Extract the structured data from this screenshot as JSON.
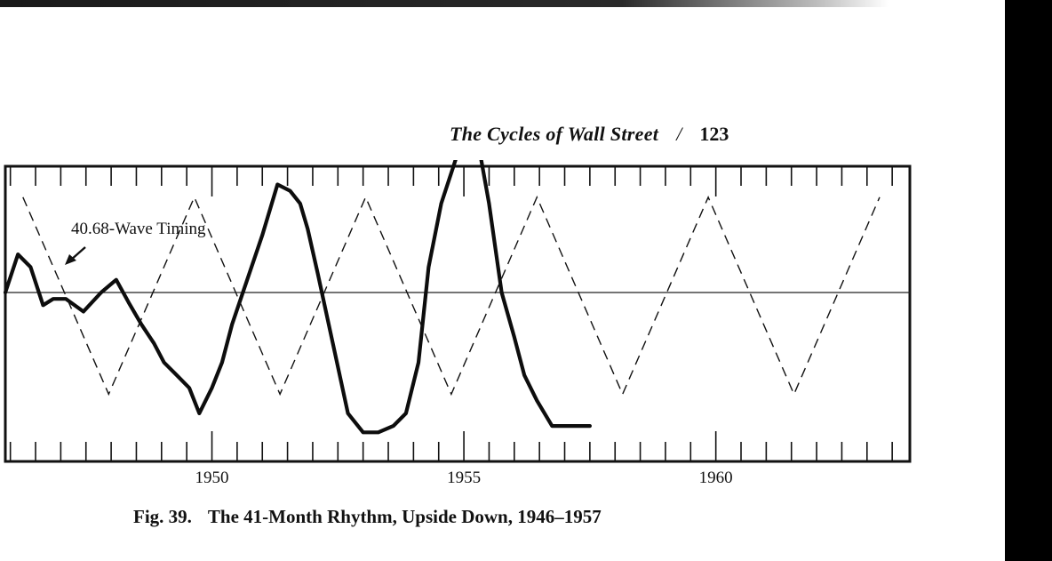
{
  "running_head": {
    "title": "The Cycles of Wall Street",
    "separator": "/",
    "page_number": "123"
  },
  "caption": {
    "label": "Fig. 39.",
    "text": "The 41-Month Rhythm, Upside Down, 1946–1957"
  },
  "chart_data": {
    "type": "line",
    "title": "",
    "xlabel": "",
    "ylabel": "",
    "x_range": [
      1945.9,
      1963.85
    ],
    "x_tick_labels": [
      {
        "x": 1950,
        "label": "1950"
      },
      {
        "x": 1955,
        "label": "1955"
      },
      {
        "x": 1960,
        "label": "1960"
      }
    ],
    "zero_line": true,
    "annotation": {
      "text": "40.68-Wave Timing",
      "arrow": true
    },
    "series": [
      {
        "name": "",
        "style": "solid-bold",
        "values_note": "",
        "x": [
          1945.9,
          1946.15,
          1946.4,
          1946.65,
          1946.85,
          1947.1,
          1947.45,
          1947.8,
          1948.1,
          1948.35,
          1948.6,
          1948.85,
          1949.05,
          1949.3,
          1949.55,
          1949.75,
          1950.0,
          1950.2,
          1950.4,
          1950.7,
          1951.0,
          1951.3,
          1951.55,
          1951.75,
          1951.9,
          1952.1,
          1952.4,
          1952.7,
          1953.0,
          1953.3,
          1953.6,
          1953.85,
          1954.1,
          1954.3,
          1954.55,
          1954.8,
          1955.0,
          1955.25,
          1955.5,
          1955.75,
          1956.0,
          1956.2,
          1956.45,
          1956.75,
          1957.1,
          1957.5
        ],
        "y": [
          0.0,
          0.3,
          0.2,
          -0.1,
          -0.05,
          -0.05,
          -0.15,
          0.0,
          0.1,
          -0.08,
          -0.25,
          -0.4,
          -0.55,
          -0.65,
          -0.75,
          -0.95,
          -0.75,
          -0.55,
          -0.25,
          0.1,
          0.45,
          0.85,
          0.8,
          0.7,
          0.5,
          0.15,
          -0.4,
          -0.95,
          -1.1,
          -1.1,
          -1.05,
          -0.95,
          -0.55,
          0.2,
          0.7,
          1.0,
          1.25,
          1.25,
          0.7,
          0.0,
          -0.35,
          -0.65,
          -0.85,
          -1.05,
          -1.05,
          -1.05
        ]
      },
      {
        "name": "40.68-Wave Timing",
        "style": "dashed",
        "period_years": 3.39,
        "x": [
          1946.25,
          1947.95,
          1949.65,
          1951.35,
          1953.05,
          1954.75,
          1956.45,
          1958.15,
          1959.85,
          1961.55,
          1963.25
        ],
        "y": [
          0.75,
          -0.8,
          0.75,
          -0.8,
          0.75,
          -0.8,
          0.75,
          -0.8,
          0.75,
          -0.8,
          0.75
        ]
      }
    ],
    "legend": "none",
    "grid": false
  }
}
